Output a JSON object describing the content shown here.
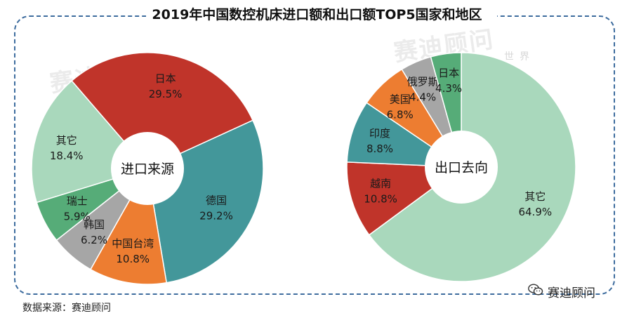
{
  "title": "2019年中国数控机床进口额和出口额TOP5国家和地区",
  "watermark": {
    "main": "赛迪顾问",
    "sub": "世界"
  },
  "source": "数据来源：赛迪顾问",
  "brand": {
    "name": "赛迪顾问",
    "icon": "wechat-icon"
  },
  "colors": {
    "teal": "#43979a",
    "orange": "#ed7d31",
    "gray": "#a6a6a6",
    "green": "#56ac78",
    "lightgreen": "#a9d8bc",
    "red": "#c0342a",
    "border": "#3d6c9e"
  },
  "chart_data": [
    {
      "type": "pie",
      "title": "进口来源",
      "center_label": "进口来源",
      "labels": [
        "德国",
        "中国台湾",
        "韩国",
        "瑞士",
        "其它",
        "日本"
      ],
      "values": [
        29.2,
        10.8,
        6.2,
        5.9,
        18.4,
        29.5
      ],
      "value_labels": [
        "29.2%",
        "10.8%",
        "6.2%",
        "5.9%",
        "18.4%",
        "29.5%"
      ],
      "colors": [
        "#43979a",
        "#ed7d31",
        "#a6a6a6",
        "#56ac78",
        "#a9d8bc",
        "#c0342a"
      ]
    },
    {
      "type": "pie",
      "title": "出口去向",
      "center_label": "出口去向",
      "labels": [
        "其它",
        "越南",
        "印度",
        "美国",
        "俄罗斯",
        "日本"
      ],
      "values": [
        64.9,
        10.8,
        8.8,
        6.8,
        4.4,
        4.3
      ],
      "value_labels": [
        "64.9%",
        "10.8%",
        "8.8%",
        "6.8%",
        "4.4%",
        "4.3%"
      ],
      "colors": [
        "#a9d8bc",
        "#c0342a",
        "#43979a",
        "#ed7d31",
        "#a6a6a6",
        "#56ac78"
      ]
    }
  ]
}
